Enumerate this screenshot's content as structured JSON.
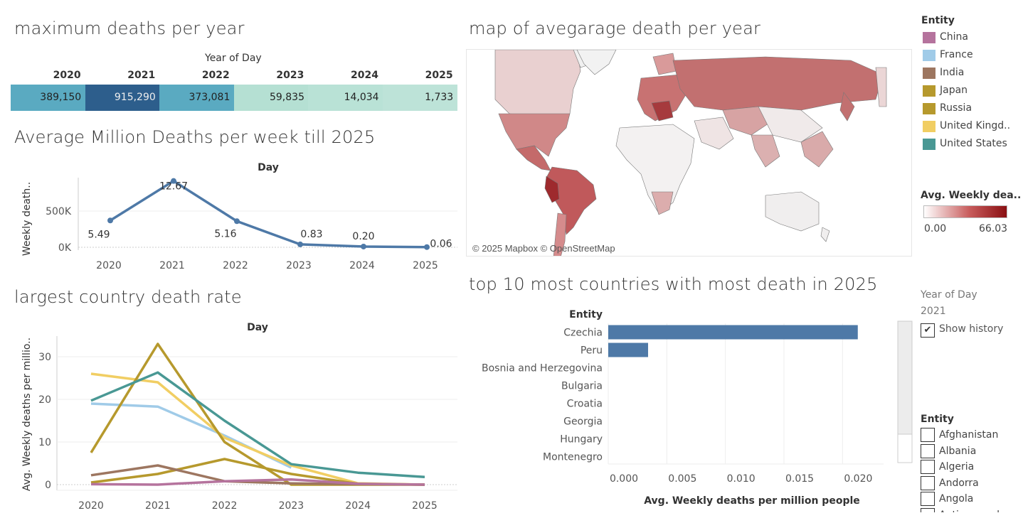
{
  "heatmap": {
    "title": "maximum deaths per year",
    "header": "Year of Day",
    "years": [
      "2020",
      "2021",
      "2022",
      "2023",
      "2024",
      "2025"
    ],
    "values": [
      "389,150",
      "915,290",
      "373,081",
      "59,835",
      "14,034",
      "1,733"
    ],
    "colors": [
      "#5aaac1",
      "#2d5e8c",
      "#5aaac1",
      "#b5e0d3",
      "#b9e2d6",
      "#bde3d8"
    ],
    "text_colors": [
      "#222",
      "#eeeeee",
      "#222",
      "#222",
      "#222",
      "#222"
    ]
  },
  "map": {
    "title": "map of avegarage death per year",
    "attribution": "© 2025 Mapbox © OpenStreetMap"
  },
  "legend": {
    "title": "Entity",
    "items": [
      {
        "label": "China",
        "color": "#b5739d"
      },
      {
        "label": "France",
        "color": "#a0cbe8"
      },
      {
        "label": "India",
        "color": "#9d7660"
      },
      {
        "label": "Japan",
        "color": "#b6992d"
      },
      {
        "label": "Russia",
        "color": "#b6992d"
      },
      {
        "label": "United Kingd..",
        "color": "#f1ce63"
      },
      {
        "label": "United States",
        "color": "#499894"
      }
    ],
    "gradient_title": "Avg. Weekly dea..",
    "gradient_min": "0.00",
    "gradient_max": "66.03"
  },
  "filters": {
    "year_label": "Year of Day",
    "year_value": "2021",
    "show_history": "Show history",
    "entity_title": "Entity",
    "entity_options": [
      "Afghanistan",
      "Albania",
      "Algeria",
      "Andorra",
      "Angola",
      "Antigua and..."
    ]
  },
  "chart_data": [
    {
      "type": "line",
      "title": "Average Million Deaths per week till 2025",
      "xlabel": "Day",
      "ylabel": "Weekly death..",
      "categories": [
        "2020",
        "2021",
        "2022",
        "2023",
        "2024",
        "2025"
      ],
      "values": [
        370000,
        915000,
        360000,
        40000,
        10000,
        3000
      ],
      "labels": [
        "5.49",
        "12.67",
        "5.16",
        "0.83",
        "0.20",
        "0.06"
      ],
      "y_ticks": [
        "500K",
        "0K"
      ],
      "ylim": [
        0,
        1000000
      ],
      "color": "#4e79a7"
    },
    {
      "type": "line",
      "title": "largest country death rate",
      "xlabel": "Day",
      "ylabel": "Avg. Weekly deaths per millio..",
      "categories": [
        "2020",
        "2021",
        "2022",
        "2023",
        "2024",
        "2025"
      ],
      "y_ticks": [
        0,
        10,
        20,
        30
      ],
      "ylim": [
        -2,
        35
      ],
      "series": [
        {
          "name": "France",
          "color": "#a0cbe8",
          "values": [
            19,
            18.3,
            11.5,
            4,
            null,
            null
          ]
        },
        {
          "name": "United Kingdom",
          "color": "#f1ce63",
          "values": [
            26,
            24,
            11,
            4.5,
            0.3,
            0
          ]
        },
        {
          "name": "Russia",
          "color": "#b6992d",
          "values": [
            7.5,
            33,
            10,
            0,
            0,
            0
          ]
        },
        {
          "name": "United States",
          "color": "#499894",
          "values": [
            19.7,
            26.3,
            15,
            4.8,
            2.8,
            1.8
          ]
        },
        {
          "name": "Japan",
          "color": "#b6992d",
          "values": [
            0.5,
            2.5,
            6,
            2.5,
            0.2,
            0
          ]
        },
        {
          "name": "India",
          "color": "#9d7660",
          "values": [
            2.2,
            4.5,
            0.8,
            0.3,
            0.1,
            0
          ]
        },
        {
          "name": "China",
          "color": "#b5739d",
          "values": [
            0.1,
            0,
            0.8,
            1.2,
            0.2,
            0
          ]
        }
      ]
    },
    {
      "type": "bar",
      "orientation": "horizontal",
      "title": "top  10 most countries with most death in 2025",
      "category_header": "Entity",
      "xlabel": "Avg. Weekly deaths per million people",
      "categories": [
        "Czechia",
        "Peru",
        "Bosnia and Herzegovina",
        "Bulgaria",
        "Croatia",
        "Georgia",
        "Hungary",
        "Montenegro"
      ],
      "values": [
        0.0213,
        0.0034,
        0,
        0,
        0,
        0,
        0,
        0
      ],
      "x_ticks": [
        "0.000",
        "0.005",
        "0.010",
        "0.015",
        "0.020"
      ],
      "xlim": [
        0,
        0.0235
      ],
      "color": "#4e79a7"
    }
  ]
}
